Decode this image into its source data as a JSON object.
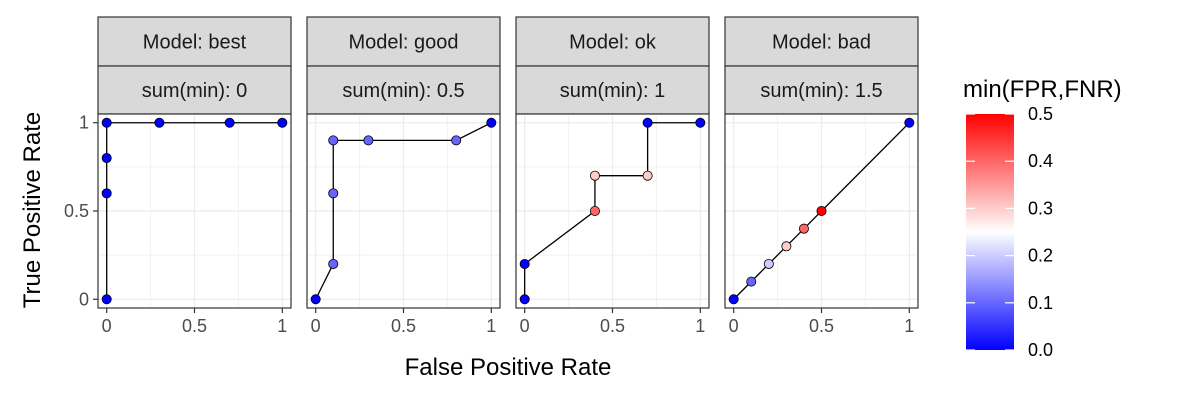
{
  "chart_data": {
    "type": "scatter",
    "facets": [
      {
        "strip_top": "Model: best",
        "strip_bottom": "sum(min): 0",
        "points": [
          {
            "fpr": 0,
            "tpr": 0,
            "min": 0
          },
          {
            "fpr": 0,
            "tpr": 0.6,
            "min": 0
          },
          {
            "fpr": 0,
            "tpr": 0.8,
            "min": 0
          },
          {
            "fpr": 0,
            "tpr": 1,
            "min": 0
          },
          {
            "fpr": 0.3,
            "tpr": 1,
            "min": 0
          },
          {
            "fpr": 0.7,
            "tpr": 1,
            "min": 0
          },
          {
            "fpr": 1,
            "tpr": 1,
            "min": 0
          }
        ]
      },
      {
        "strip_top": "Model: good",
        "strip_bottom": "sum(min): 0.5",
        "points": [
          {
            "fpr": 0,
            "tpr": 0,
            "min": 0
          },
          {
            "fpr": 0.1,
            "tpr": 0.2,
            "min": 0.1
          },
          {
            "fpr": 0.1,
            "tpr": 0.6,
            "min": 0.1
          },
          {
            "fpr": 0.1,
            "tpr": 0.9,
            "min": 0.1
          },
          {
            "fpr": 0.3,
            "tpr": 0.9,
            "min": 0.1
          },
          {
            "fpr": 0.8,
            "tpr": 0.9,
            "min": 0.1
          },
          {
            "fpr": 1,
            "tpr": 1,
            "min": 0
          }
        ]
      },
      {
        "strip_top": "Model: ok",
        "strip_bottom": "sum(min): 1",
        "points": [
          {
            "fpr": 0,
            "tpr": 0,
            "min": 0
          },
          {
            "fpr": 0,
            "tpr": 0.2,
            "min": 0
          },
          {
            "fpr": 0.4,
            "tpr": 0.5,
            "min": 0.4
          },
          {
            "fpr": 0.4,
            "tpr": 0.7,
            "min": 0.3
          },
          {
            "fpr": 0.7,
            "tpr": 0.7,
            "min": 0.3
          },
          {
            "fpr": 0.7,
            "tpr": 1,
            "min": 0
          },
          {
            "fpr": 1,
            "tpr": 1,
            "min": 0
          }
        ]
      },
      {
        "strip_top": "Model: bad",
        "strip_bottom": "sum(min): 1.5",
        "points": [
          {
            "fpr": 0,
            "tpr": 0,
            "min": 0
          },
          {
            "fpr": 0.1,
            "tpr": 0.1,
            "min": 0.1
          },
          {
            "fpr": 0.2,
            "tpr": 0.2,
            "min": 0.2
          },
          {
            "fpr": 0.3,
            "tpr": 0.3,
            "min": 0.3
          },
          {
            "fpr": 0.4,
            "tpr": 0.4,
            "min": 0.4
          },
          {
            "fpr": 0.5,
            "tpr": 0.5,
            "min": 0.5
          },
          {
            "fpr": 1,
            "tpr": 1,
            "min": 0
          }
        ]
      }
    ],
    "xlabel": "False Positive Rate",
    "ylabel": "True Positive Rate",
    "xlim": [
      0,
      1
    ],
    "ylim": [
      0,
      1
    ],
    "x_ticks": [
      0,
      0.5,
      1
    ],
    "x_tick_labels": [
      "0",
      "0.5",
      "1"
    ],
    "y_ticks": [
      0,
      0.5,
      1
    ],
    "y_tick_labels": [
      "0",
      "0.5",
      "1"
    ],
    "grid": true,
    "color_scale": {
      "title": "min(FPR,FNR)",
      "domain": [
        0,
        0.5
      ],
      "low": "#0000ff",
      "mid": "#ffffff",
      "high": "#ff0000",
      "midpoint": 0.25,
      "ticks": [
        0.0,
        0.1,
        0.2,
        0.3,
        0.4,
        0.5
      ],
      "tick_labels": [
        "0.0",
        "0.1",
        "0.2",
        "0.3",
        "0.4",
        "0.5"
      ]
    },
    "legend_position": "right"
  }
}
